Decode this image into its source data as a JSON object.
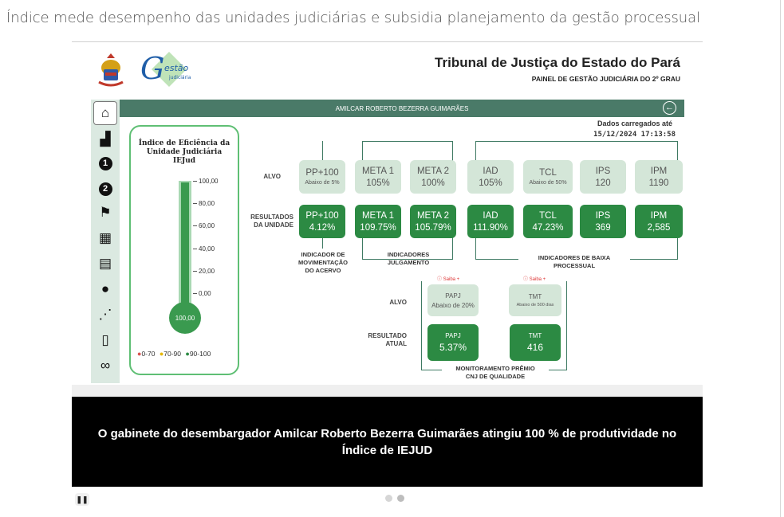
{
  "headline": "Índice mede desempenho das unidades judiciárias e subsidia planejamento da gestão processual",
  "slide": {
    "logo_text": "Gestão judiciária",
    "tribunal_title": "Tribunal de Justiça do Estado do Pará",
    "panel_subtitle": "PAINEL DE GESTÃO JUDICIÁRIA DO 2º GRAU",
    "unit_name": "AMILCAR ROBERTO BEZERRA GUIMARÃES",
    "loaded_label": "Dados carregados até",
    "loaded_value": "15/12/2024 17:13:58",
    "sidebar_numbers": [
      "1",
      "2"
    ],
    "thermometer": {
      "title_line1": "Índice de Eficiência da",
      "title_line2": "Unidade Judiciária",
      "title_line3": "IEJud",
      "level_percent": 100,
      "bulb_value": "100,00",
      "ticks": [
        "100,00",
        "80,00",
        "60,00",
        "40,00",
        "20,00",
        "0,00"
      ],
      "legend": [
        "0-70",
        "70-90",
        "90-100"
      ],
      "legend_colors": [
        "#d9534f",
        "#e6b800",
        "#2c8a43"
      ]
    },
    "labels": {
      "alvo": "ALVO",
      "resultados_line1": "RESULTADOS",
      "resultados_line2": "DA UNIDADE",
      "alvo2": "ALVO",
      "resultado_atual_line1": "RESULTADO",
      "resultado_atual_line2": "ATUAL",
      "saiba": "Saiba +"
    },
    "targets": [
      {
        "name": "PP+100",
        "value": "Abaixo de 5%"
      },
      {
        "name": "META 1",
        "value": "105%"
      },
      {
        "name": "META 2",
        "value": "100%"
      },
      {
        "name": "IAD",
        "value": "105%"
      },
      {
        "name": "TCL",
        "value": "Abaixo de 50%"
      },
      {
        "name": "IPS",
        "value": "120"
      },
      {
        "name": "IPM",
        "value": "1190"
      }
    ],
    "results": [
      {
        "name": "PP+100",
        "value": "4.12%"
      },
      {
        "name": "META 1",
        "value": "109.75%"
      },
      {
        "name": "META 2",
        "value": "105.79%"
      },
      {
        "name": "IAD",
        "value": "111.90%"
      },
      {
        "name": "TCL",
        "value": "47.23%"
      },
      {
        "name": "IPS",
        "value": "369"
      },
      {
        "name": "IPM",
        "value": "2,585"
      }
    ],
    "groups": {
      "movimentacao_line1": "INDICADOR DE",
      "movimentacao_line2": "MOVIMENTAÇÃO",
      "movimentacao_line3": "DO ACERVO",
      "julgamento_line1": "INDICADORES",
      "julgamento_line2": "JULGAMENTO",
      "baixa_line1": "INDICADORES DE BAIXA",
      "baixa_line2": "PROCESSUAL",
      "premio_line1": "MONITORAMENTO PRÊMIO",
      "premio_line2": "CNJ DE QUALIDADE"
    },
    "cnj_targets": [
      {
        "name": "PAPJ",
        "value": "Abaixo de 20%"
      },
      {
        "name": "TMT",
        "value": "Abaixo de 500 dias"
      }
    ],
    "cnj_results": [
      {
        "name": "PAPJ",
        "value": "5.37%"
      },
      {
        "name": "TMT",
        "value": "416"
      }
    ],
    "colors": {
      "accent_green": "#2c8a43",
      "bar_green": "#4a7a68",
      "light_card": "#d4e6d8"
    }
  },
  "caption_line1": "O gabinete do desembargador Amilcar Roberto Bezerra Guimarães atingiu 100 % de produtividade no",
  "caption_line2": "Índice de IEJUD",
  "carousel": {
    "pause_icon": "pause-icon",
    "slide_count": 2,
    "active_index": 1
  }
}
